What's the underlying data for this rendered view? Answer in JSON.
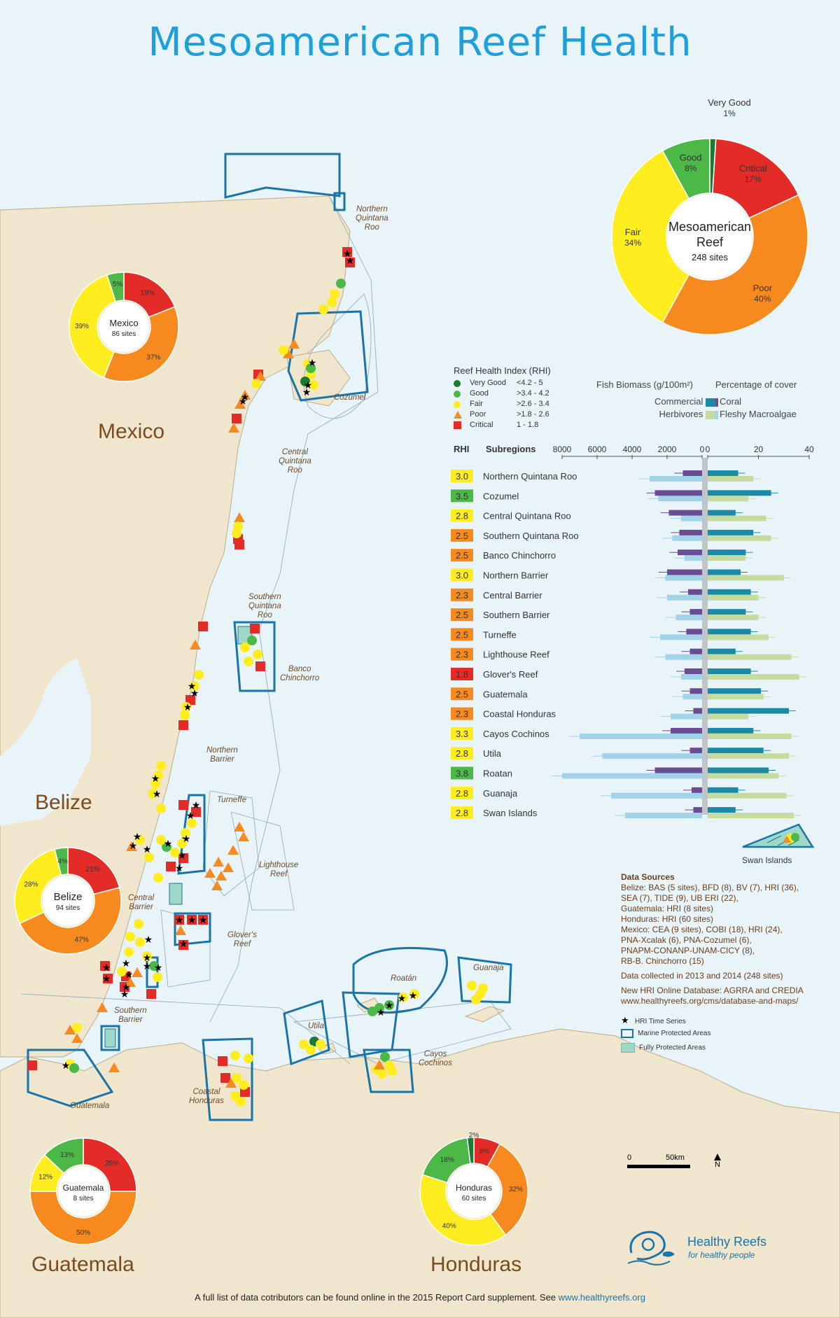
{
  "title": "Mesoamerican Reef Health",
  "countries": {
    "mexico": "Mexico",
    "belize": "Belize",
    "guatemala": "Guatemala",
    "honduras": "Honduras"
  },
  "regions": {
    "northern_qr": [
      "Northern",
      "Quintana",
      "Roo"
    ],
    "cozumel": [
      "Cozumel"
    ],
    "central_qr": [
      "Central",
      "Quintana",
      "Roo"
    ],
    "southern_qr": [
      "Southern",
      "Quintana",
      "Roo"
    ],
    "banco": [
      "Banco",
      "Chinchorro"
    ],
    "northern_barrier": [
      "Northern",
      "Barrier"
    ],
    "turneffe": [
      "Turneffe"
    ],
    "lighthouse": [
      "Lighthouse",
      "Reef"
    ],
    "central_barrier": [
      "Central",
      "Barrier"
    ],
    "glovers": [
      "Glover's",
      "Reef"
    ],
    "southern_barrier": [
      "Southern",
      "Barrier"
    ],
    "guatemala_r": [
      "Guatemala"
    ],
    "coastal_honduras": [
      "Coastal",
      "Honduras"
    ],
    "utila": [
      "Utila"
    ],
    "roatan": [
      "Roatán"
    ],
    "guanaja": [
      "Guanaja"
    ],
    "cayos": [
      "Cayos",
      "Cochinos"
    ],
    "swan": [
      "Swan Islands"
    ]
  },
  "colors": {
    "very_good": "#1b7a34",
    "good": "#4cb848",
    "fair": "#ffed1f",
    "poor": "#f68a1e",
    "critical": "#e32b27",
    "commercial": "#6a4c93",
    "herbivores": "#a3d3e8",
    "coral": "#1b8aa6",
    "macroalgae": "#c6dba0",
    "mpa": "#1a74a8",
    "fpa": "#9fd8c8",
    "land": "#efe6cd"
  },
  "donuts": [
    {
      "id": "mar",
      "name": "Mesoamerican",
      "name2": "Reef",
      "sites": "248 sites",
      "segments": [
        {
          "label": "Very Good",
          "pct": "1%",
          "value": 1,
          "color": "#1b7a34"
        },
        {
          "label": "Critical",
          "pct": "17%",
          "value": 17,
          "color": "#e32b27"
        },
        {
          "label": "Poor",
          "pct": "40%",
          "value": 40,
          "color": "#f68a1e"
        },
        {
          "label": "Fair",
          "pct": "34%",
          "value": 34,
          "color": "#ffed1f"
        },
        {
          "label": "Good",
          "pct": "8%",
          "value": 8,
          "color": "#4cb848"
        }
      ]
    },
    {
      "id": "mexico",
      "name": "Mexico",
      "sites": "86 sites",
      "segments": [
        {
          "label": "",
          "pct": "19%",
          "value": 19,
          "color": "#e32b27"
        },
        {
          "label": "",
          "pct": "37%",
          "value": 37,
          "color": "#f68a1e"
        },
        {
          "label": "",
          "pct": "39%",
          "value": 39,
          "color": "#ffed1f"
        },
        {
          "label": "",
          "pct": "5%",
          "value": 5,
          "color": "#4cb848"
        }
      ]
    },
    {
      "id": "belize",
      "name": "Belize",
      "sites": "94 sites",
      "segments": [
        {
          "label": "",
          "pct": "21%",
          "value": 21,
          "color": "#e32b27"
        },
        {
          "label": "",
          "pct": "47%",
          "value": 47,
          "color": "#f68a1e"
        },
        {
          "label": "",
          "pct": "28%",
          "value": 28,
          "color": "#ffed1f"
        },
        {
          "label": "",
          "pct": "4%",
          "value": 4,
          "color": "#4cb848"
        }
      ]
    },
    {
      "id": "guatemala",
      "name": "Guatemala",
      "sites": "8 sites",
      "segments": [
        {
          "label": "",
          "pct": "25%",
          "value": 25,
          "color": "#e32b27"
        },
        {
          "label": "",
          "pct": "50%",
          "value": 50,
          "color": "#f68a1e"
        },
        {
          "label": "",
          "pct": "12%",
          "value": 12,
          "color": "#ffed1f"
        },
        {
          "label": "",
          "pct": "13%",
          "value": 13,
          "color": "#4cb848"
        }
      ]
    },
    {
      "id": "honduras",
      "name": "Honduras",
      "sites": "60 sites",
      "segments": [
        {
          "label": "",
          "pct": "8%",
          "value": 8,
          "color": "#e32b27"
        },
        {
          "label": "",
          "pct": "32%",
          "value": 32,
          "color": "#f68a1e"
        },
        {
          "label": "",
          "pct": "40%",
          "value": 40,
          "color": "#ffed1f"
        },
        {
          "label": "",
          "pct": "18%",
          "value": 18,
          "color": "#4cb848"
        },
        {
          "label": "",
          "pct": "2%",
          "value": 2,
          "color": "#1b7a34"
        }
      ]
    }
  ],
  "rhi_legend": {
    "title": "Reef Health Index (RHI)",
    "items": [
      {
        "label": "Very Good",
        "range": "<4.2 - 5",
        "color": "#1b7a34",
        "shape": "circle"
      },
      {
        "label": "Good",
        "range": ">3.4 - 4.2",
        "color": "#4cb848",
        "shape": "circle"
      },
      {
        "label": "Fair",
        "range": ">2.6 - 3.4",
        "color": "#ffed1f",
        "shape": "circle"
      },
      {
        "label": "Poor",
        "range": ">1.8 - 2.6",
        "color": "#f68a1e",
        "shape": "triangle"
      },
      {
        "label": "Critical",
        "range": "1 - 1.8",
        "color": "#e32b27",
        "shape": "square"
      }
    ]
  },
  "bar_legend": {
    "fish_title": "Fish Biomass (g/100m²)",
    "cover_title": "Percentage of cover",
    "commercial": "Commercial",
    "herbivores": "Herbivores",
    "coral": "Coral",
    "macroalgae": "Fleshy Macroalgae"
  },
  "chart_data": {
    "type": "bar",
    "headers": {
      "rhi": "RHI",
      "subregions": "Subregions"
    },
    "left_axis": {
      "label": "Fish Biomass (g/100m²)",
      "ticks": [
        "8000",
        "6000",
        "4000",
        "2000",
        "0"
      ],
      "range": [
        0,
        8000
      ]
    },
    "right_axis": {
      "label": "Percentage of cover",
      "ticks": [
        "0",
        "20",
        "40"
      ],
      "range": [
        0,
        40
      ]
    },
    "rows": [
      {
        "name": "Northern Quintana Roo",
        "rhi": "3.0",
        "rhi_color": "#ffed1f",
        "commercial": 1100,
        "herbivores": 3000,
        "coral": 12,
        "macroalgae": 18
      },
      {
        "name": "Cozumel",
        "rhi": "3.5",
        "rhi_color": "#4cb848",
        "commercial": 2700,
        "herbivores": 2500,
        "coral": 25,
        "macroalgae": 16
      },
      {
        "name": "Central Quintana Roo",
        "rhi": "2.8",
        "rhi_color": "#ffed1f",
        "commercial": 1900,
        "herbivores": 1200,
        "coral": 11,
        "macroalgae": 23
      },
      {
        "name": "Southern Quintana Roo",
        "rhi": "2.5",
        "rhi_color": "#f68a1e",
        "commercial": 1300,
        "herbivores": 1700,
        "coral": 18,
        "macroalgae": 25
      },
      {
        "name": "Banco Chinchorro",
        "rhi": "2.5",
        "rhi_color": "#f68a1e",
        "commercial": 1400,
        "herbivores": 1000,
        "coral": 15,
        "macroalgae": 15
      },
      {
        "name": "Northern Barrier",
        "rhi": "3.0",
        "rhi_color": "#ffed1f",
        "commercial": 2000,
        "herbivores": 2100,
        "coral": 13,
        "macroalgae": 30
      },
      {
        "name": "Central Barrier",
        "rhi": "2.3",
        "rhi_color": "#f68a1e",
        "commercial": 800,
        "herbivores": 2000,
        "coral": 17,
        "macroalgae": 20
      },
      {
        "name": "Southern Barrier",
        "rhi": "2.5",
        "rhi_color": "#f68a1e",
        "commercial": 700,
        "herbivores": 1500,
        "coral": 15,
        "macroalgae": 20
      },
      {
        "name": "Turneffe",
        "rhi": "2.5",
        "rhi_color": "#f68a1e",
        "commercial": 900,
        "herbivores": 2400,
        "coral": 17,
        "macroalgae": 24
      },
      {
        "name": "Lighthouse Reef",
        "rhi": "2.3",
        "rhi_color": "#f68a1e",
        "commercial": 700,
        "herbivores": 2100,
        "coral": 11,
        "macroalgae": 33
      },
      {
        "name": "Glover's Reef",
        "rhi": "1.8",
        "rhi_color": "#e32b27",
        "commercial": 1000,
        "herbivores": 1200,
        "coral": 17,
        "macroalgae": 36
      },
      {
        "name": "Guatemala",
        "rhi": "2.5",
        "rhi_color": "#f68a1e",
        "commercial": 700,
        "herbivores": 1100,
        "coral": 21,
        "macroalgae": 22
      },
      {
        "name": "Coastal Honduras",
        "rhi": "2.3",
        "rhi_color": "#f68a1e",
        "commercial": 500,
        "herbivores": 1800,
        "coral": 32,
        "macroalgae": 16
      },
      {
        "name": "Cayos Cochinos",
        "rhi": "3.3",
        "rhi_color": "#ffed1f",
        "commercial": 1800,
        "herbivores": 7000,
        "coral": 18,
        "macroalgae": 33
      },
      {
        "name": "Utila",
        "rhi": "2.8",
        "rhi_color": "#ffed1f",
        "commercial": 700,
        "herbivores": 5700,
        "coral": 22,
        "macroalgae": 32
      },
      {
        "name": "Roatan",
        "rhi": "3.8",
        "rhi_color": "#4cb848",
        "commercial": 2700,
        "herbivores": 8000,
        "coral": 24,
        "macroalgae": 28
      },
      {
        "name": "Guanaja",
        "rhi": "2.8",
        "rhi_color": "#ffed1f",
        "commercial": 600,
        "herbivores": 5200,
        "coral": 12,
        "macroalgae": 31
      },
      {
        "name": "Swan Islands",
        "rhi": "2.8",
        "rhi_color": "#ffed1f",
        "commercial": 500,
        "herbivores": 4400,
        "coral": 11,
        "macroalgae": 34
      }
    ]
  },
  "data_sources": {
    "heading": "Data Sources",
    "lines": [
      "Belize: BAS (5 sites), BFD (8), BV (7), HRI (36),",
      "SEA (7), TIDE (9), UB ERI (22),",
      "Guatemala: HRI (8 sites)",
      "Honduras: HRI (60 sites)",
      "Mexico: CEA (9 sites), COBI (18), HRI (24),",
      "PNA-Xcalak (6), PNA-Cozumel (6),",
      "PNAPM-CONANP-UNAM-CICY (8),",
      "RB-B. Chinchorro (15)"
    ],
    "collected": "Data collected in 2013 and 2014 (248 sites)",
    "db1": "New HRI Online Database: AGRRA and CREDIA",
    "db2": "www.healthyreefs.org/cms/database-and-maps/"
  },
  "map_legend": {
    "time_series": "HRI Time Series",
    "mpa": "Marine Protected Areas",
    "fpa": "Fully Protected Areas"
  },
  "scale": {
    "zero": "0",
    "dist": "50km",
    "north": "N"
  },
  "logo": {
    "name": "Healthy Reefs",
    "tagline": "for healthy people"
  },
  "footer": {
    "text": "A full list of data cotributors can be found online in the 2015 Report Card supplement. See ",
    "link": "www.healthyreefs.org"
  }
}
